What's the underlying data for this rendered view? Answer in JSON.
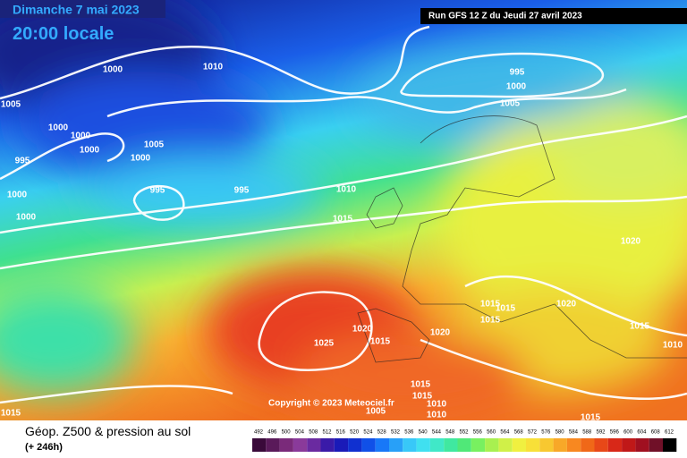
{
  "header": {
    "date": "Dimanche 7 mai 2023",
    "time": "20:00 locale",
    "run": "Run GFS 12 Z du Jeudi 27 avril 2023"
  },
  "isobar_labels": [
    "1000",
    "1010",
    "1005",
    "1000",
    "1000",
    "1000",
    "1005",
    "1000",
    "995",
    "995",
    "995",
    "1000",
    "1000",
    "995",
    "1000",
    "1005",
    "1010",
    "1015",
    "1020",
    "1020",
    "1015",
    "1015",
    "1015",
    "1015",
    "1010",
    "1025",
    "1020",
    "1015",
    "1020",
    "1015",
    "1015",
    "1010",
    "1005",
    "1010",
    "1015",
    "1015"
  ],
  "copyright": "Copyright © 2023 Meteociel.fr",
  "legend": {
    "title": "Géop. Z500 & pression au sol",
    "lead": "(+ 246h)",
    "scale": [
      492,
      496,
      500,
      504,
      508,
      512,
      516,
      520,
      524,
      528,
      532,
      536,
      540,
      544,
      548,
      552,
      556,
      560,
      564,
      568,
      572,
      576,
      580,
      584,
      588,
      592,
      596,
      600,
      604,
      608,
      612
    ]
  }
}
